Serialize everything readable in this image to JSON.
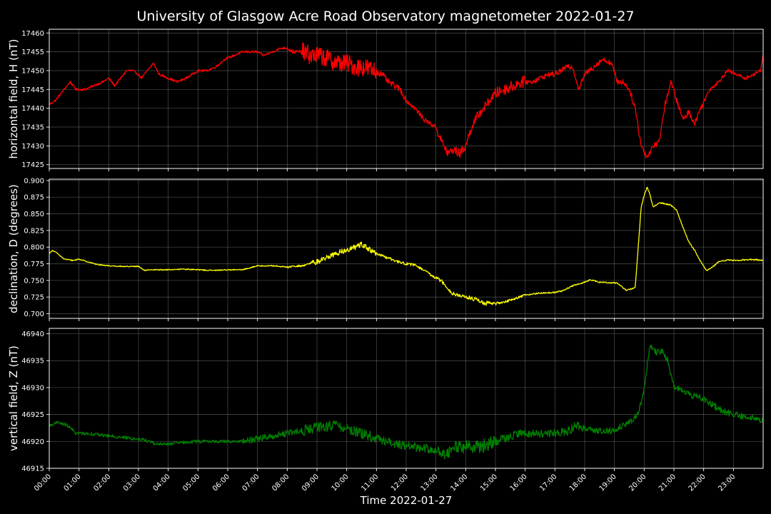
{
  "chart_data": {
    "type": "line",
    "title": "University of Glasgow Acre Road Observatory magnetometer 2022-01-27",
    "xlabel": "Time 2022-01-27",
    "x_ticks": [
      "00:00",
      "01:00",
      "02:00",
      "03:00",
      "04:00",
      "05:00",
      "06:00",
      "07:00",
      "08:00",
      "09:00",
      "10:00",
      "11:00",
      "12:00",
      "13:00",
      "14:00",
      "15:00",
      "16:00",
      "17:00",
      "18:00",
      "19:00",
      "20:00",
      "21:00",
      "22:00",
      "23:00"
    ],
    "x_unit": "hours",
    "x_range": [
      0,
      24
    ],
    "grid": true,
    "panels": [
      {
        "ylabel": "horizontal field, H (nT)",
        "color": "#ff0000",
        "ylim": [
          17424,
          17461
        ],
        "yticks": [
          17425,
          17430,
          17435,
          17440,
          17445,
          17450,
          17455,
          17460
        ],
        "ytick_labels": [
          "17425",
          "17430",
          "17435",
          "17440",
          "17445",
          "17450",
          "17455",
          "17460"
        ],
        "noise_scale": [
          [
            0,
            0.3
          ],
          [
            8,
            0.5
          ],
          [
            8.5,
            2.5
          ],
          [
            11,
            0.8
          ],
          [
            12,
            0.6
          ],
          [
            13,
            1.2
          ],
          [
            15,
            1.5
          ],
          [
            16,
            0.7
          ],
          [
            19.5,
            0.8
          ],
          [
            22,
            0.5
          ],
          [
            24,
            0.5
          ]
        ],
        "x": [
          0,
          0.2,
          0.5,
          0.7,
          0.9,
          1.2,
          1.5,
          1.8,
          2.0,
          2.2,
          2.4,
          2.6,
          2.8,
          3.0,
          3.1,
          3.3,
          3.5,
          3.7,
          4.0,
          4.3,
          4.6,
          5.0,
          5.3,
          5.6,
          5.9,
          6.2,
          6.5,
          6.8,
          7.0,
          7.2,
          7.5,
          7.8,
          8.0,
          8.2,
          8.5,
          8.8,
          9.1,
          9.4,
          9.7,
          10.0,
          10.3,
          10.6,
          10.9,
          11.2,
          11.4,
          11.6,
          11.8,
          12.0,
          12.3,
          12.6,
          12.8,
          13.0,
          13.2,
          13.4,
          13.6,
          13.8,
          14.0,
          14.2,
          14.4,
          14.6,
          14.8,
          15.0,
          15.3,
          15.6,
          15.9,
          16.2,
          16.5,
          16.8,
          17.0,
          17.2,
          17.4,
          17.6,
          17.8,
          18.0,
          18.3,
          18.6,
          18.9,
          19.1,
          19.3,
          19.5,
          19.7,
          19.9,
          20.1,
          20.3,
          20.5,
          20.7,
          20.9,
          21.1,
          21.3,
          21.5,
          21.7,
          21.9,
          22.2,
          22.5,
          22.8,
          23.1,
          23.4,
          23.7,
          23.9,
          24.0
        ],
        "y": [
          17441,
          17442,
          17445,
          17447,
          17445,
          17445,
          17446,
          17447,
          17448,
          17446,
          17448,
          17450,
          17450,
          17449,
          17448,
          17450,
          17452,
          17449,
          17448,
          17447,
          17448,
          17450,
          17450,
          17451,
          17453,
          17454,
          17455,
          17455,
          17455,
          17454,
          17455,
          17456,
          17456,
          17455,
          17455,
          17454,
          17454,
          17453,
          17452,
          17452,
          17451,
          17451,
          17450,
          17449,
          17447,
          17446,
          17445,
          17442,
          17440,
          17437,
          17436,
          17435,
          17431,
          17428,
          17429,
          17428,
          17430,
          17435,
          17438,
          17440,
          17442,
          17444,
          17445,
          17446,
          17447,
          17447,
          17448,
          17449,
          17449,
          17450,
          17451,
          17451,
          17445,
          17449,
          17451,
          17453,
          17452,
          17447,
          17447,
          17445,
          17440,
          17430,
          17427,
          17430,
          17431,
          17441,
          17447,
          17442,
          17437,
          17439,
          17436,
          17440,
          17445,
          17447,
          17450,
          17449,
          17448,
          17449,
          17450,
          17454
        ]
      },
      {
        "ylabel": "declination, D (degrees)",
        "color": "#ffff00",
        "ylim": [
          0.693,
          0.902
        ],
        "yticks": [
          0.7,
          0.725,
          0.75,
          0.775,
          0.8,
          0.825,
          0.85,
          0.875,
          0.9
        ],
        "ytick_labels": [
          "0.700",
          "0.725",
          "0.750",
          "0.775",
          "0.800",
          "0.825",
          "0.850",
          "0.875",
          "0.900"
        ],
        "noise_scale": [
          [
            0,
            0.0008
          ],
          [
            8,
            0.0015
          ],
          [
            8.8,
            0.004
          ],
          [
            11,
            0.002
          ],
          [
            13,
            0.003
          ],
          [
            15,
            0.002
          ],
          [
            16,
            0.001
          ],
          [
            24,
            0.001
          ]
        ],
        "x": [
          0,
          0.1,
          0.3,
          0.5,
          0.8,
          1.0,
          1.3,
          1.6,
          2.0,
          2.5,
          3.0,
          3.2,
          3.5,
          4.0,
          4.5,
          5.0,
          5.5,
          6.0,
          6.5,
          7.0,
          7.5,
          8.0,
          8.5,
          9.0,
          9.5,
          10.0,
          10.3,
          10.5,
          10.8,
          11.0,
          11.3,
          11.6,
          12.0,
          12.3,
          12.6,
          12.9,
          13.1,
          13.3,
          13.5,
          13.8,
          14.0,
          14.3,
          14.6,
          15.0,
          15.3,
          15.6,
          16.0,
          16.5,
          17.0,
          17.3,
          17.6,
          17.9,
          18.2,
          18.5,
          18.8,
          19.1,
          19.4,
          19.6,
          19.7,
          19.8,
          19.9,
          20.0,
          20.1,
          20.2,
          20.3,
          20.5,
          20.7,
          20.9,
          21.1,
          21.3,
          21.5,
          21.7,
          21.9,
          22.1,
          22.3,
          22.5,
          22.8,
          23.1,
          23.5,
          23.8,
          24.0
        ],
        "y": [
          0.79,
          0.795,
          0.79,
          0.782,
          0.78,
          0.782,
          0.778,
          0.774,
          0.772,
          0.771,
          0.771,
          0.765,
          0.766,
          0.766,
          0.767,
          0.766,
          0.765,
          0.766,
          0.766,
          0.772,
          0.772,
          0.77,
          0.772,
          0.778,
          0.788,
          0.796,
          0.8,
          0.805,
          0.795,
          0.79,
          0.785,
          0.78,
          0.775,
          0.773,
          0.765,
          0.756,
          0.752,
          0.745,
          0.732,
          0.727,
          0.725,
          0.722,
          0.716,
          0.715,
          0.718,
          0.722,
          0.728,
          0.731,
          0.732,
          0.735,
          0.742,
          0.746,
          0.751,
          0.747,
          0.747,
          0.746,
          0.735,
          0.738,
          0.74,
          0.8,
          0.86,
          0.878,
          0.89,
          0.878,
          0.86,
          0.867,
          0.865,
          0.863,
          0.855,
          0.83,
          0.808,
          0.795,
          0.778,
          0.765,
          0.77,
          0.778,
          0.781,
          0.78,
          0.781,
          0.781,
          0.78
        ]
      },
      {
        "ylabel": "vertical field, Z (nT)",
        "color": "#008000",
        "ylim": [
          46915,
          46941
        ],
        "yticks": [
          46915,
          46920,
          46925,
          46930,
          46935,
          46940
        ],
        "ytick_labels": [
          "46915",
          "46920",
          "46925",
          "46930",
          "46935",
          "46940"
        ],
        "noise_scale": [
          [
            0,
            0.3
          ],
          [
            6.5,
            0.6
          ],
          [
            8.5,
            1.0
          ],
          [
            11,
            0.8
          ],
          [
            13.3,
            1.2
          ],
          [
            15,
            0.8
          ],
          [
            18,
            0.6
          ],
          [
            24,
            0.4
          ]
        ],
        "x": [
          0,
          0.3,
          0.6,
          0.9,
          1.2,
          1.6,
          2.0,
          2.4,
          2.8,
          3.2,
          3.6,
          4.0,
          4.5,
          5.0,
          5.5,
          6.0,
          6.5,
          7.0,
          7.5,
          8.0,
          8.5,
          9.0,
          9.5,
          10.0,
          10.5,
          11.0,
          11.5,
          12.0,
          12.5,
          13.0,
          13.3,
          13.6,
          14.0,
          14.5,
          15.0,
          15.5,
          16.0,
          16.5,
          17.0,
          17.5,
          17.7,
          18.0,
          18.5,
          19.0,
          19.3,
          19.6,
          19.8,
          20.0,
          20.2,
          20.4,
          20.6,
          20.8,
          21.0,
          21.3,
          21.6,
          22.0,
          22.5,
          23.0,
          23.5,
          24.0
        ],
        "y": [
          46923,
          46923.5,
          46923,
          46921.5,
          46921.5,
          46921.3,
          46921,
          46920.8,
          46920.5,
          46920.3,
          46919.5,
          46919.5,
          46919.8,
          46920,
          46920,
          46920,
          46920,
          46920.5,
          46921,
          46921.5,
          46922,
          46922.5,
          46923,
          46922.5,
          46921.5,
          46920.5,
          46919.8,
          46919.2,
          46918.8,
          46918.5,
          46917.5,
          46919,
          46919,
          46919,
          46920,
          46921,
          46921.5,
          46921.5,
          46921.5,
          46922,
          46923,
          46922.5,
          46922,
          46922,
          46923,
          46924,
          46925,
          46930,
          46938,
          46936.5,
          46937,
          46935,
          46930,
          46929.5,
          46928.5,
          46928,
          46926,
          46925,
          46924.5,
          46924
        ]
      }
    ]
  }
}
